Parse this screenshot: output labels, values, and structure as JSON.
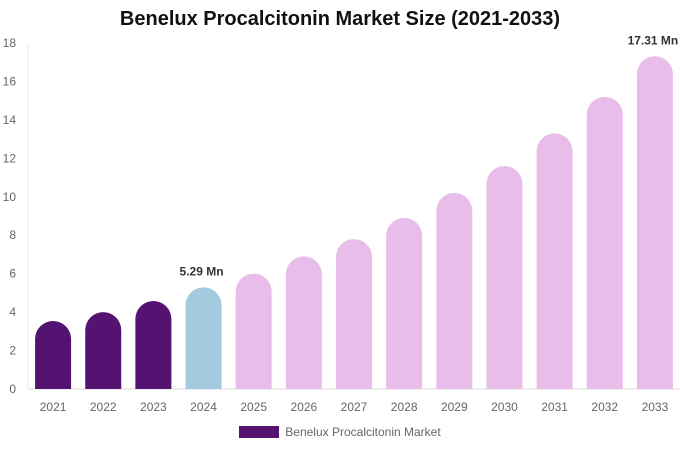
{
  "chart_data": {
    "type": "bar",
    "title": "Benelux Procalcitonin Market Size (2021-2033)",
    "categories": [
      "2021",
      "2022",
      "2023",
      "2024",
      "2025",
      "2026",
      "2027",
      "2028",
      "2029",
      "2030",
      "2031",
      "2032",
      "2033"
    ],
    "series": [
      {
        "name": "Benelux Procalcitonin Market",
        "values": [
          3.54,
          4.0,
          4.58,
          5.29,
          6.0,
          6.9,
          7.8,
          8.9,
          10.2,
          11.6,
          13.3,
          15.2,
          17.31
        ]
      }
    ],
    "data_labels": {
      "2024": "5.29 Mn",
      "2033": "17.31 Mn"
    },
    "ylim": [
      0,
      18
    ],
    "yticks": [
      0,
      2,
      4,
      6,
      8,
      10,
      12,
      14,
      16,
      18
    ],
    "grid": false,
    "legend": "bottom",
    "colors": {
      "historical": "#541370",
      "base_year": "#a3cadf",
      "forecast": "#e8bde9"
    }
  }
}
